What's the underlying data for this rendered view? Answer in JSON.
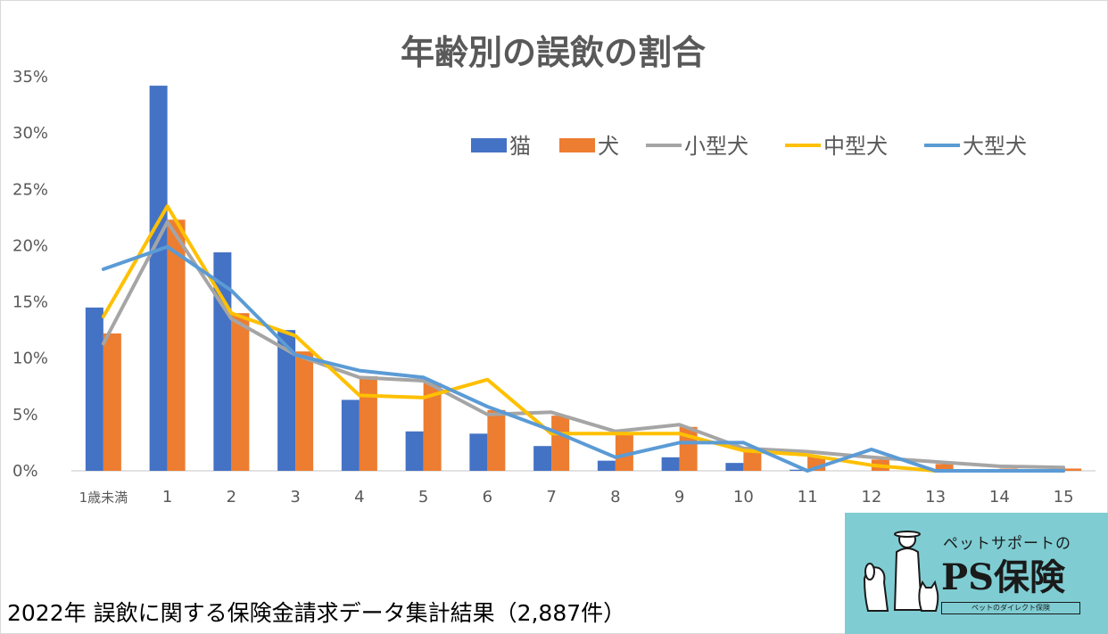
{
  "chart_data": {
    "type": "bar",
    "title": "年齢別の誤飲の割合",
    "categories": [
      "1歳未満",
      "1",
      "2",
      "3",
      "4",
      "5",
      "6",
      "7",
      "8",
      "9",
      "10",
      "11",
      "12",
      "13",
      "14",
      "15"
    ],
    "y_ticks": [
      "0%",
      "5%",
      "10%",
      "15%",
      "20%",
      "25%",
      "30%",
      "35%"
    ],
    "ylim": [
      0,
      35
    ],
    "bar_series": [
      {
        "name": "猫",
        "color": "#4472c4",
        "values": [
          14.5,
          34.2,
          19.4,
          12.5,
          6.3,
          3.5,
          3.3,
          2.2,
          0.9,
          1.2,
          0.7,
          0.1,
          0,
          0,
          0,
          0
        ]
      },
      {
        "name": "犬",
        "color": "#ed7d31",
        "values": [
          12.2,
          22.3,
          14.0,
          10.6,
          8.4,
          7.8,
          5.4,
          4.9,
          3.4,
          3.9,
          1.7,
          1.3,
          1.0,
          0.6,
          0.2,
          0.2
        ]
      }
    ],
    "line_series": [
      {
        "name": "小型犬",
        "color": "#a5a5a5",
        "values": [
          11.3,
          22.1,
          13.5,
          10.3,
          8.3,
          8.0,
          5.0,
          5.2,
          3.5,
          4.1,
          2.0,
          1.7,
          1.2,
          0.8,
          0.4,
          0.3
        ]
      },
      {
        "name": "中型犬",
        "color": "#ffc000",
        "values": [
          13.7,
          23.5,
          14.0,
          12.0,
          6.7,
          6.5,
          8.1,
          3.3,
          3.3,
          3.3,
          1.8,
          1.4,
          0.5,
          0,
          0,
          0
        ]
      },
      {
        "name": "大型犬",
        "color": "#5b9bd5",
        "values": [
          17.9,
          19.9,
          16.0,
          10.3,
          8.9,
          8.3,
          5.7,
          3.6,
          1.2,
          2.5,
          2.5,
          0,
          1.9,
          0,
          0,
          0
        ]
      }
    ],
    "legend": [
      "猫",
      "犬",
      "小型犬",
      "中型犬",
      "大型犬"
    ],
    "legend_position": "top-right",
    "xlabel": "",
    "ylabel": ""
  },
  "footnote": "2022年 誤飲に関する保険金請求データ集計結果（2,887件）",
  "logo": {
    "tagline": "ペットサポートの",
    "brand": "PS保険",
    "subtitle": "ペットのダイレクト保険"
  }
}
